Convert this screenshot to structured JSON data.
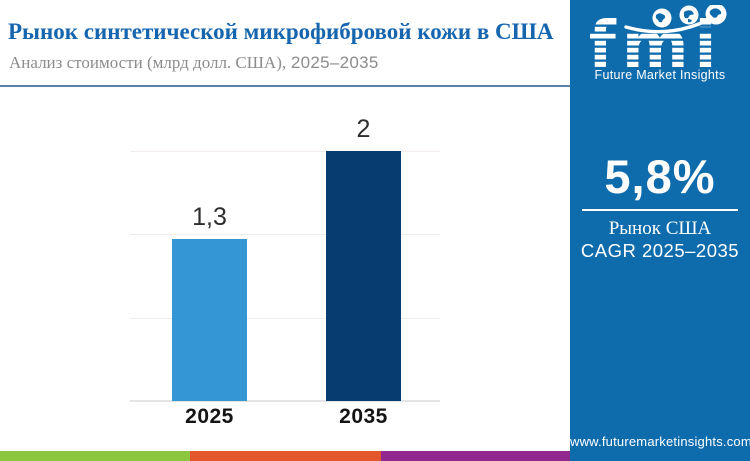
{
  "header": {
    "title": "Рынок синтетической микрофибровой кожи в США",
    "subtitle_text": "Анализ стоимости (млрд долл. США),",
    "subtitle_range": "2025–2035"
  },
  "chart_data": {
    "type": "bar",
    "title": "Рынок синтетической микрофибровой кожи в США",
    "subtitle": "Анализ стоимости (млрд долл. США), 2025–2035",
    "categories": [
      "2025",
      "2035"
    ],
    "values": [
      1.3,
      2
    ],
    "value_labels": [
      "1,3",
      "2"
    ],
    "ylim": [
      0,
      2
    ],
    "xlabel": "",
    "ylabel": "",
    "grid": "faint horizontal gridlines, no axis labels",
    "legend": "none",
    "bar_colors": [
      "#3596D5",
      "#063C70"
    ]
  },
  "sidebar": {
    "bg_color": "#0E6CAD",
    "logo_text": "fmi",
    "logo_tagline": "Future Market Insights",
    "stat_value": "5,8%",
    "stat_label_line1": "Рынок США",
    "stat_label_line2": "CAGR 2025–2035",
    "website": "www.futuremarketinsights.com"
  },
  "footer": {
    "stripe_colors": [
      "#8CC63E",
      "#E2572B",
      "#92278F"
    ]
  }
}
